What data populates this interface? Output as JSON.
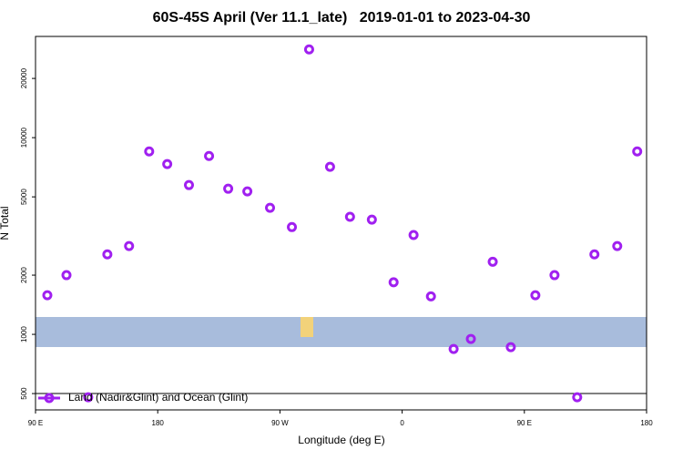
{
  "chart_data": {
    "type": "scatter",
    "title": "60S-45S April (Ver 11.1_late)   2019-01-01 to 2023-04-30",
    "xlabel": "Longitude (deg E)",
    "ylabel": "N Total",
    "xlim": [
      90,
      540
    ],
    "ylim": [
      413,
      32700
    ],
    "log_y": true,
    "xticks": [
      {
        "value": 90,
        "label": "90 E"
      },
      {
        "value": 180,
        "label": "180"
      },
      {
        "value": 270,
        "label": "90 W"
      },
      {
        "value": 360,
        "label": "0"
      },
      {
        "value": 450,
        "label": "90 E"
      },
      {
        "value": 540,
        "label": "180"
      }
    ],
    "yticks": [
      500,
      1000,
      2000,
      5000,
      10000,
      20000
    ],
    "legend": "lower left",
    "series": [
      {
        "name": "Land (Nadir&Glint) and Ocean (Glint)",
        "color": "#a020f0",
        "x": [
          98.7,
          112.8,
          128.8,
          142.9,
          158.9,
          173.7,
          187,
          203,
          217.8,
          231.9,
          246,
          262.7,
          278.8,
          291.5,
          306.9,
          321.6,
          337.7,
          353.7,
          368.4,
          381.2,
          397.9,
          410.6,
          426.7,
          440,
          458.1,
          472.2,
          488.9,
          501.6,
          518.4,
          533.1
        ],
        "values": [
          1580,
          2000,
          479,
          2550,
          2810,
          8510,
          7340,
          5740,
          8070,
          5500,
          5330,
          4400,
          3510,
          28100,
          7110,
          3960,
          3830,
          1840,
          3200,
          1560,
          843,
          948,
          2340,
          861,
          1580,
          2000,
          479,
          2550,
          2810,
          8510
        ]
      }
    ]
  }
}
